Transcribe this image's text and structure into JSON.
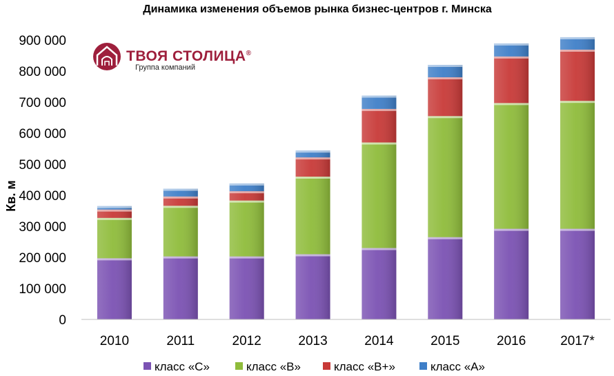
{
  "chart_data": {
    "type": "bar",
    "stacked": true,
    "title": "Динамика изменения объемов рынка бизнес-центров г. Минска",
    "xlabel": "",
    "ylabel": "Кв. м",
    "ylim": [
      0,
      900000
    ],
    "yticks": [
      0,
      100000,
      200000,
      300000,
      400000,
      500000,
      600000,
      700000,
      800000,
      900000
    ],
    "ytick_labels": [
      "0",
      "100 000",
      "200 000",
      "300 000",
      "400 000",
      "500 000",
      "600 000",
      "700 000",
      "800 000",
      "900 000"
    ],
    "categories": [
      "2010",
      "2011",
      "2012",
      "2013",
      "2014",
      "2015",
      "2016",
      "2017*"
    ],
    "series": [
      {
        "name": "класс «С»",
        "color": "#7b52b3",
        "values": [
          197000,
          203000,
          203000,
          210000,
          230000,
          265000,
          292000,
          292000
        ]
      },
      {
        "name": "класс «В»",
        "color": "#8fbc3b",
        "values": [
          130000,
          163000,
          180000,
          250000,
          340000,
          390000,
          405000,
          412000
        ]
      },
      {
        "name": "класс «В+»",
        "color": "#c83a38",
        "values": [
          27000,
          30000,
          30000,
          62000,
          108000,
          125000,
          150000,
          165000
        ]
      },
      {
        "name": "класс «А»",
        "color": "#3f7fc8",
        "values": [
          11000,
          25000,
          25000,
          22000,
          43000,
          40000,
          42000,
          40000
        ]
      }
    ],
    "grid": false,
    "legend_position": "bottom"
  },
  "logo": {
    "name": "ТВОЯ СТОЛИЦА",
    "mark": "®",
    "subtitle": "Группа компаний",
    "color": "#9e1f3c",
    "icon": "house-arch-icon"
  }
}
